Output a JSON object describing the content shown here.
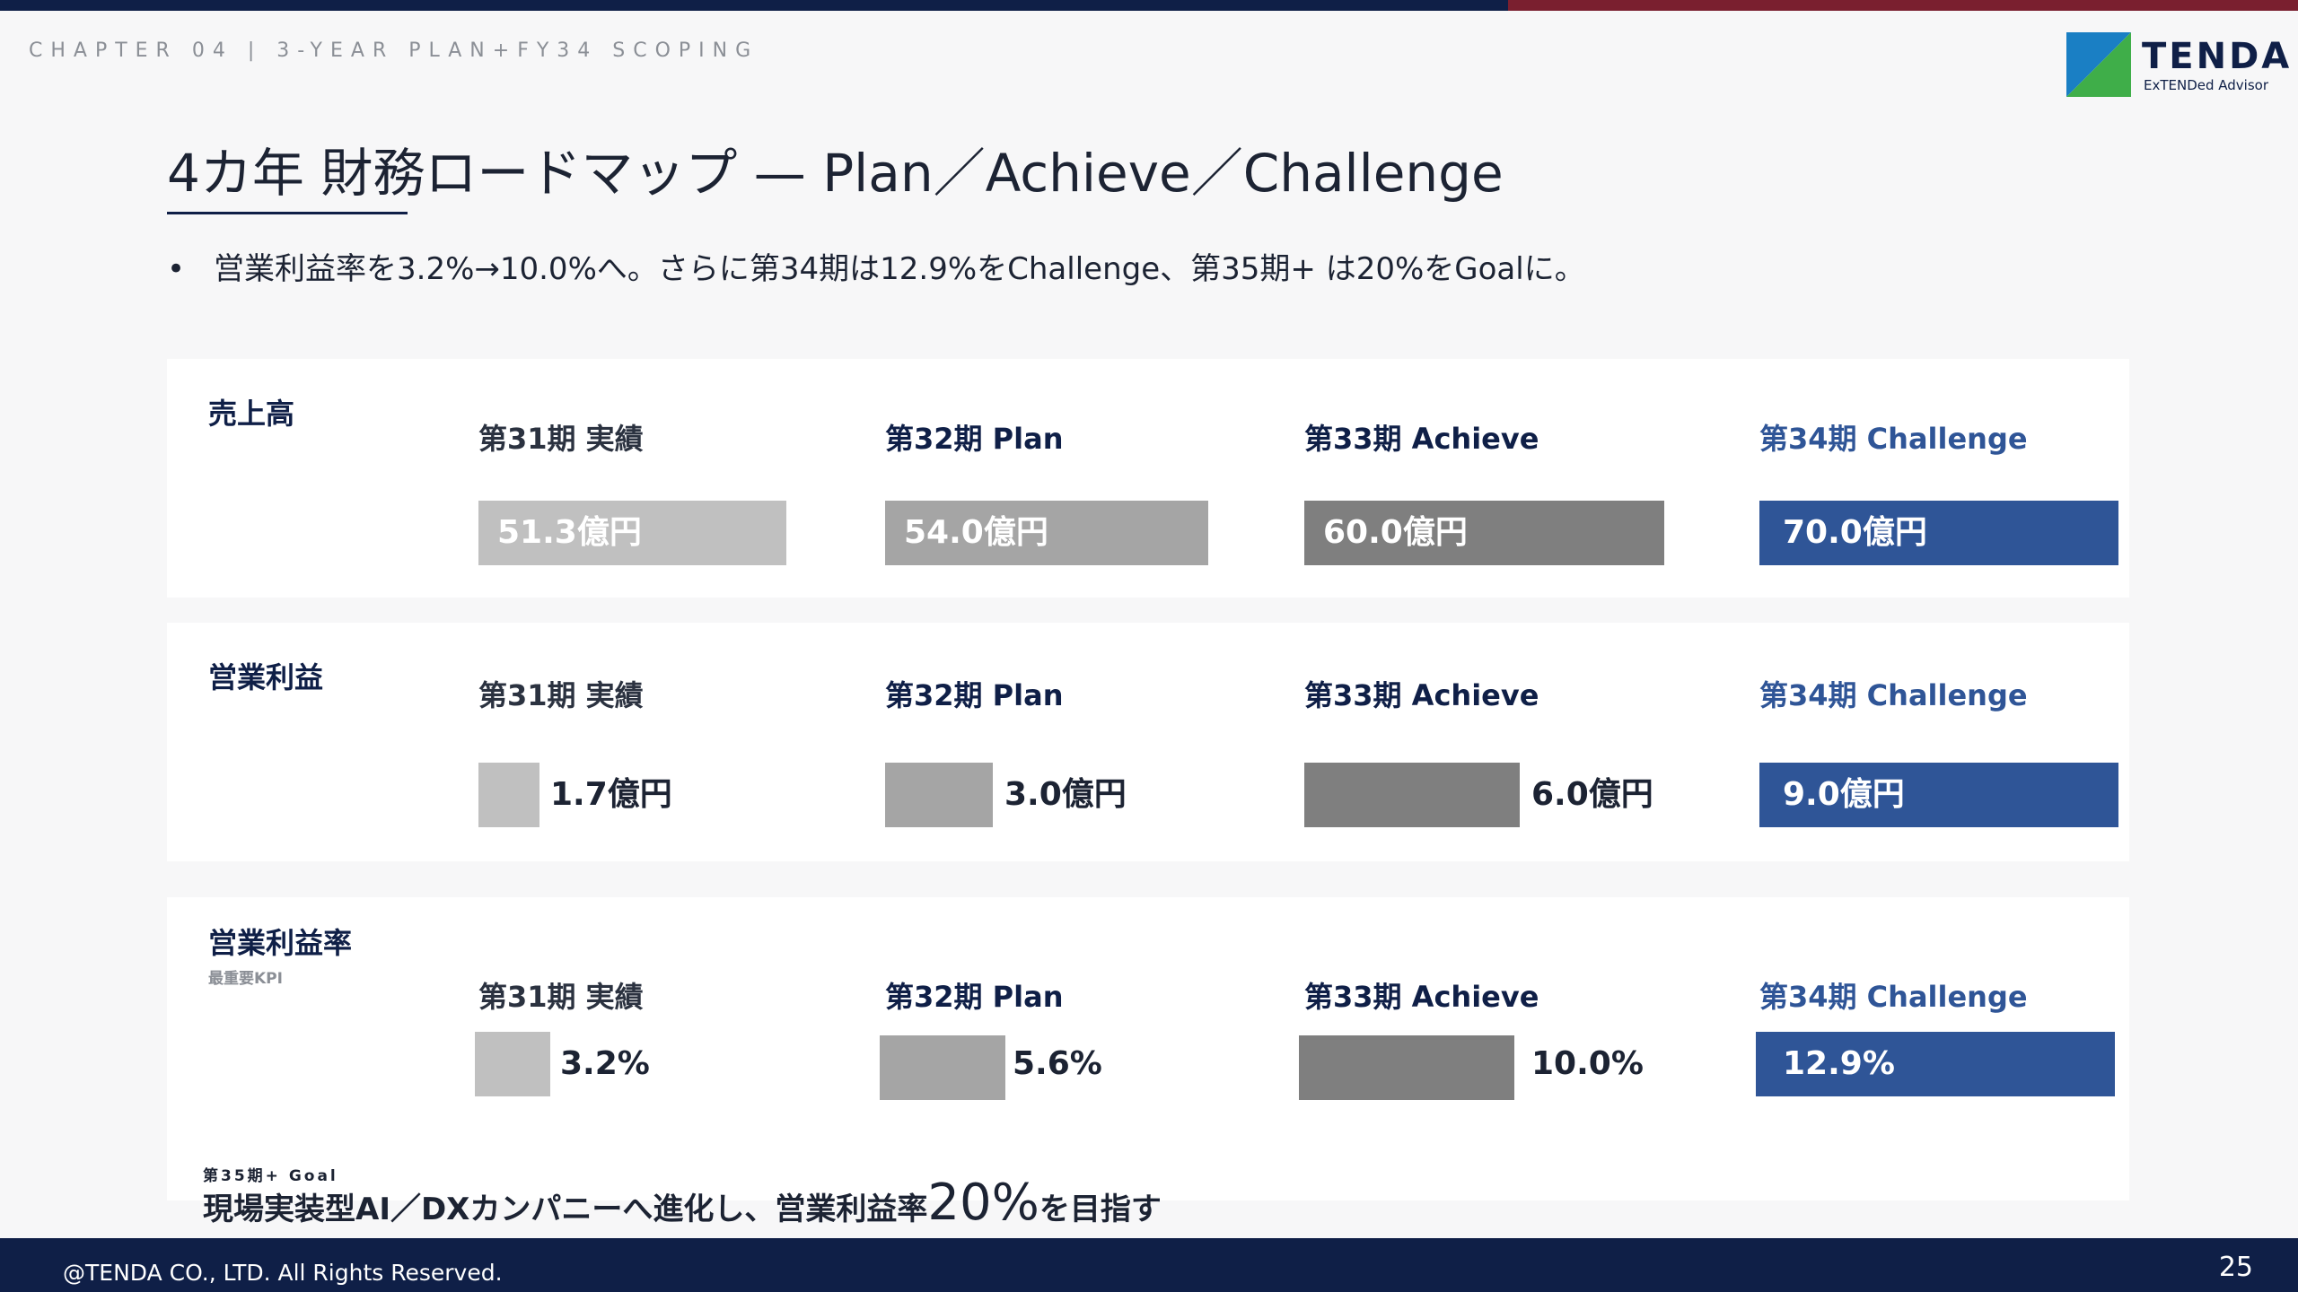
{
  "header": {
    "chapter": "CHAPTER 04  |  3-YEAR PLAN+FY34 SCOPING",
    "logo_name": "TENDA",
    "logo_tagline": "ExTENDed Advisor",
    "accent_navy": "#0f1f47",
    "accent_red": "#7a1f2f"
  },
  "slide": {
    "title": "4カ年 財務ロードマップ — Plan／Achieve／Challenge",
    "bullet": "営業利益率を3.2%→10.0%へ。さらに第34期は12.9%をChallenge、第35期+ は20%をGoalに。"
  },
  "sections": [
    {
      "title": "売上高",
      "subtitle": "",
      "columns": [
        {
          "label": "第31期 実績",
          "value_text": "51.3億円",
          "value": 51.3,
          "color": "#c0c0c0",
          "label_color": "#2b3240"
        },
        {
          "label": "第32期 Plan",
          "value_text": "54.0億円",
          "value": 54.0,
          "color": "#a5a5a5",
          "label_color": "#0f1f47"
        },
        {
          "label": "第33期 Achieve",
          "value_text": "60.0億円",
          "value": 60.0,
          "color": "#7f7f7f",
          "label_color": "#0f1f47"
        },
        {
          "label": "第34期 Challenge",
          "value_text": "70.0億円",
          "value": 70.0,
          "color": "#2f5597",
          "label_color": "#2f5597"
        }
      ]
    },
    {
      "title": "営業利益",
      "subtitle": "",
      "columns": [
        {
          "label": "第31期 実績",
          "value_text": "1.7億円",
          "value": 1.7,
          "color": "#c0c0c0",
          "label_color": "#2b3240"
        },
        {
          "label": "第32期 Plan",
          "value_text": "3.0億円",
          "value": 3.0,
          "color": "#a5a5a5",
          "label_color": "#0f1f47"
        },
        {
          "label": "第33期 Achieve",
          "value_text": "6.0億円",
          "value": 6.0,
          "color": "#7f7f7f",
          "label_color": "#0f1f47"
        },
        {
          "label": "第34期 Challenge",
          "value_text": "9.0億円",
          "value": 9.0,
          "color": "#2f5597",
          "label_color": "#2f5597"
        }
      ]
    },
    {
      "title": "営業利益率",
      "subtitle": "最重要KPI",
      "columns": [
        {
          "label": "第31期 実績",
          "value_text": "3.2%",
          "value": 3.2,
          "color": "#c0c0c0",
          "label_color": "#2b3240"
        },
        {
          "label": "第32期 Plan",
          "value_text": "5.6%",
          "value": 5.6,
          "color": "#a5a5a5",
          "label_color": "#0f1f47"
        },
        {
          "label": "第33期 Achieve",
          "value_text": "10.0%",
          "value": 10.0,
          "color": "#7f7f7f",
          "label_color": "#0f1f47"
        },
        {
          "label": "第34期 Challenge",
          "value_text": "12.9%",
          "value": 12.9,
          "color": "#2f5597",
          "label_color": "#2f5597"
        }
      ]
    }
  ],
  "goal": {
    "kicker": "第35期+ Goal",
    "text_before": "現場実装型AI／DXカンパニーへ進化し、営業利益率",
    "highlight": "20%",
    "text_after": "を目指す"
  },
  "footer": {
    "copyright": "@TENDA CO., LTD. All Rights Reserved.",
    "page_number": "25"
  }
}
